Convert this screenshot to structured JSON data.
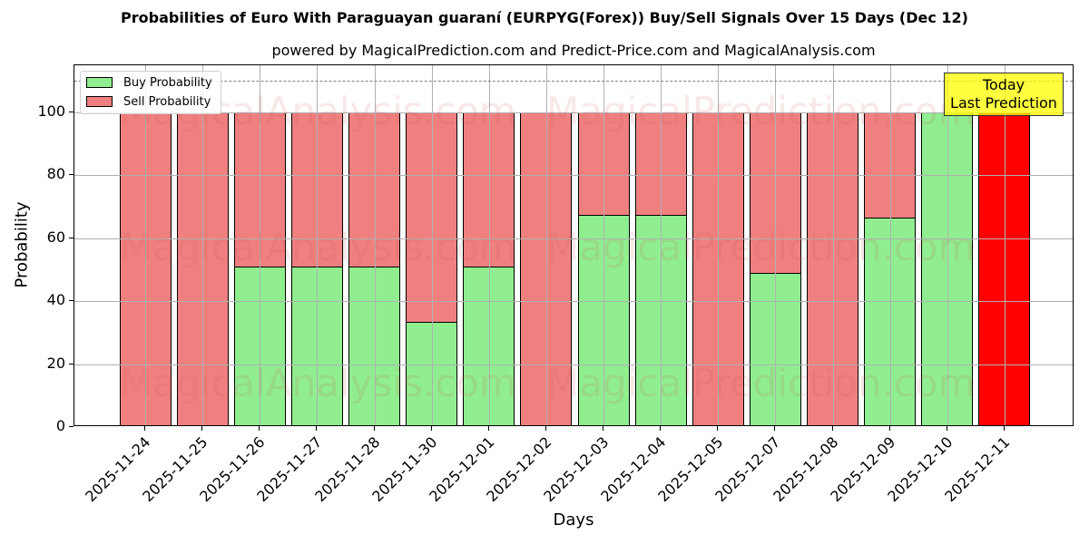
{
  "header": {
    "title": "Probabilities of Euro With Paraguayan guaraní (EURPYG(Forex)) Buy/Sell Signals Over 15 Days (Dec 12)",
    "subtitle": "powered by MagicalPrediction.com and Predict-Price.com and MagicalAnalysis.com"
  },
  "legend": {
    "buy_label": "Buy Probability",
    "sell_label": "Sell Probability"
  },
  "annotation": {
    "line1": "Today",
    "line2": "Last Prediction"
  },
  "watermarks": [
    "MagicalAnalysis.com",
    "MagicalPrediction.com"
  ],
  "colors": {
    "buy": "#90ee90",
    "sell": "#f08080",
    "today_sell": "#ff0000",
    "annotation_bg": "#ffff44",
    "threshold": "#808080"
  },
  "chart_data": {
    "type": "bar",
    "stacked": true,
    "title": "Probabilities of Euro With Paraguayan guaraní (EURPYG(Forex)) Buy/Sell Signals Over 15 Days (Dec 12)",
    "subtitle": "powered by MagicalPrediction.com and Predict-Price.com and MagicalAnalysis.com",
    "xlabel": "Days",
    "ylabel": "Probability",
    "ylim": [
      0,
      115
    ],
    "yticks": [
      0,
      20,
      40,
      60,
      80,
      100
    ],
    "grid": true,
    "legend_position": "upper left",
    "threshold_line": 110,
    "categories": [
      "2025-11-24",
      "2025-11-25",
      "2025-11-26",
      "2025-11-27",
      "2025-11-28",
      "2025-11-30",
      "2025-12-01",
      "2025-12-02",
      "2025-12-03",
      "2025-12-04",
      "2025-12-05",
      "2025-12-07",
      "2025-12-08",
      "2025-12-09",
      "2025-12-10",
      "2025-12-11"
    ],
    "series": [
      {
        "name": "Buy Probability",
        "values": [
          0,
          0,
          51,
          51,
          51,
          33.5,
          51,
          0,
          67.3,
          67.3,
          0,
          49.1,
          0,
          66.5,
          100,
          0
        ]
      },
      {
        "name": "Sell Probability",
        "values": [
          100,
          100,
          49,
          49,
          49,
          66.5,
          49,
          100,
          32.7,
          32.7,
          100,
          50.9,
          100,
          33.5,
          0,
          100
        ]
      }
    ],
    "annotations": [
      {
        "text": "Today\nLast Prediction",
        "x": "2025-12-11"
      }
    ]
  }
}
